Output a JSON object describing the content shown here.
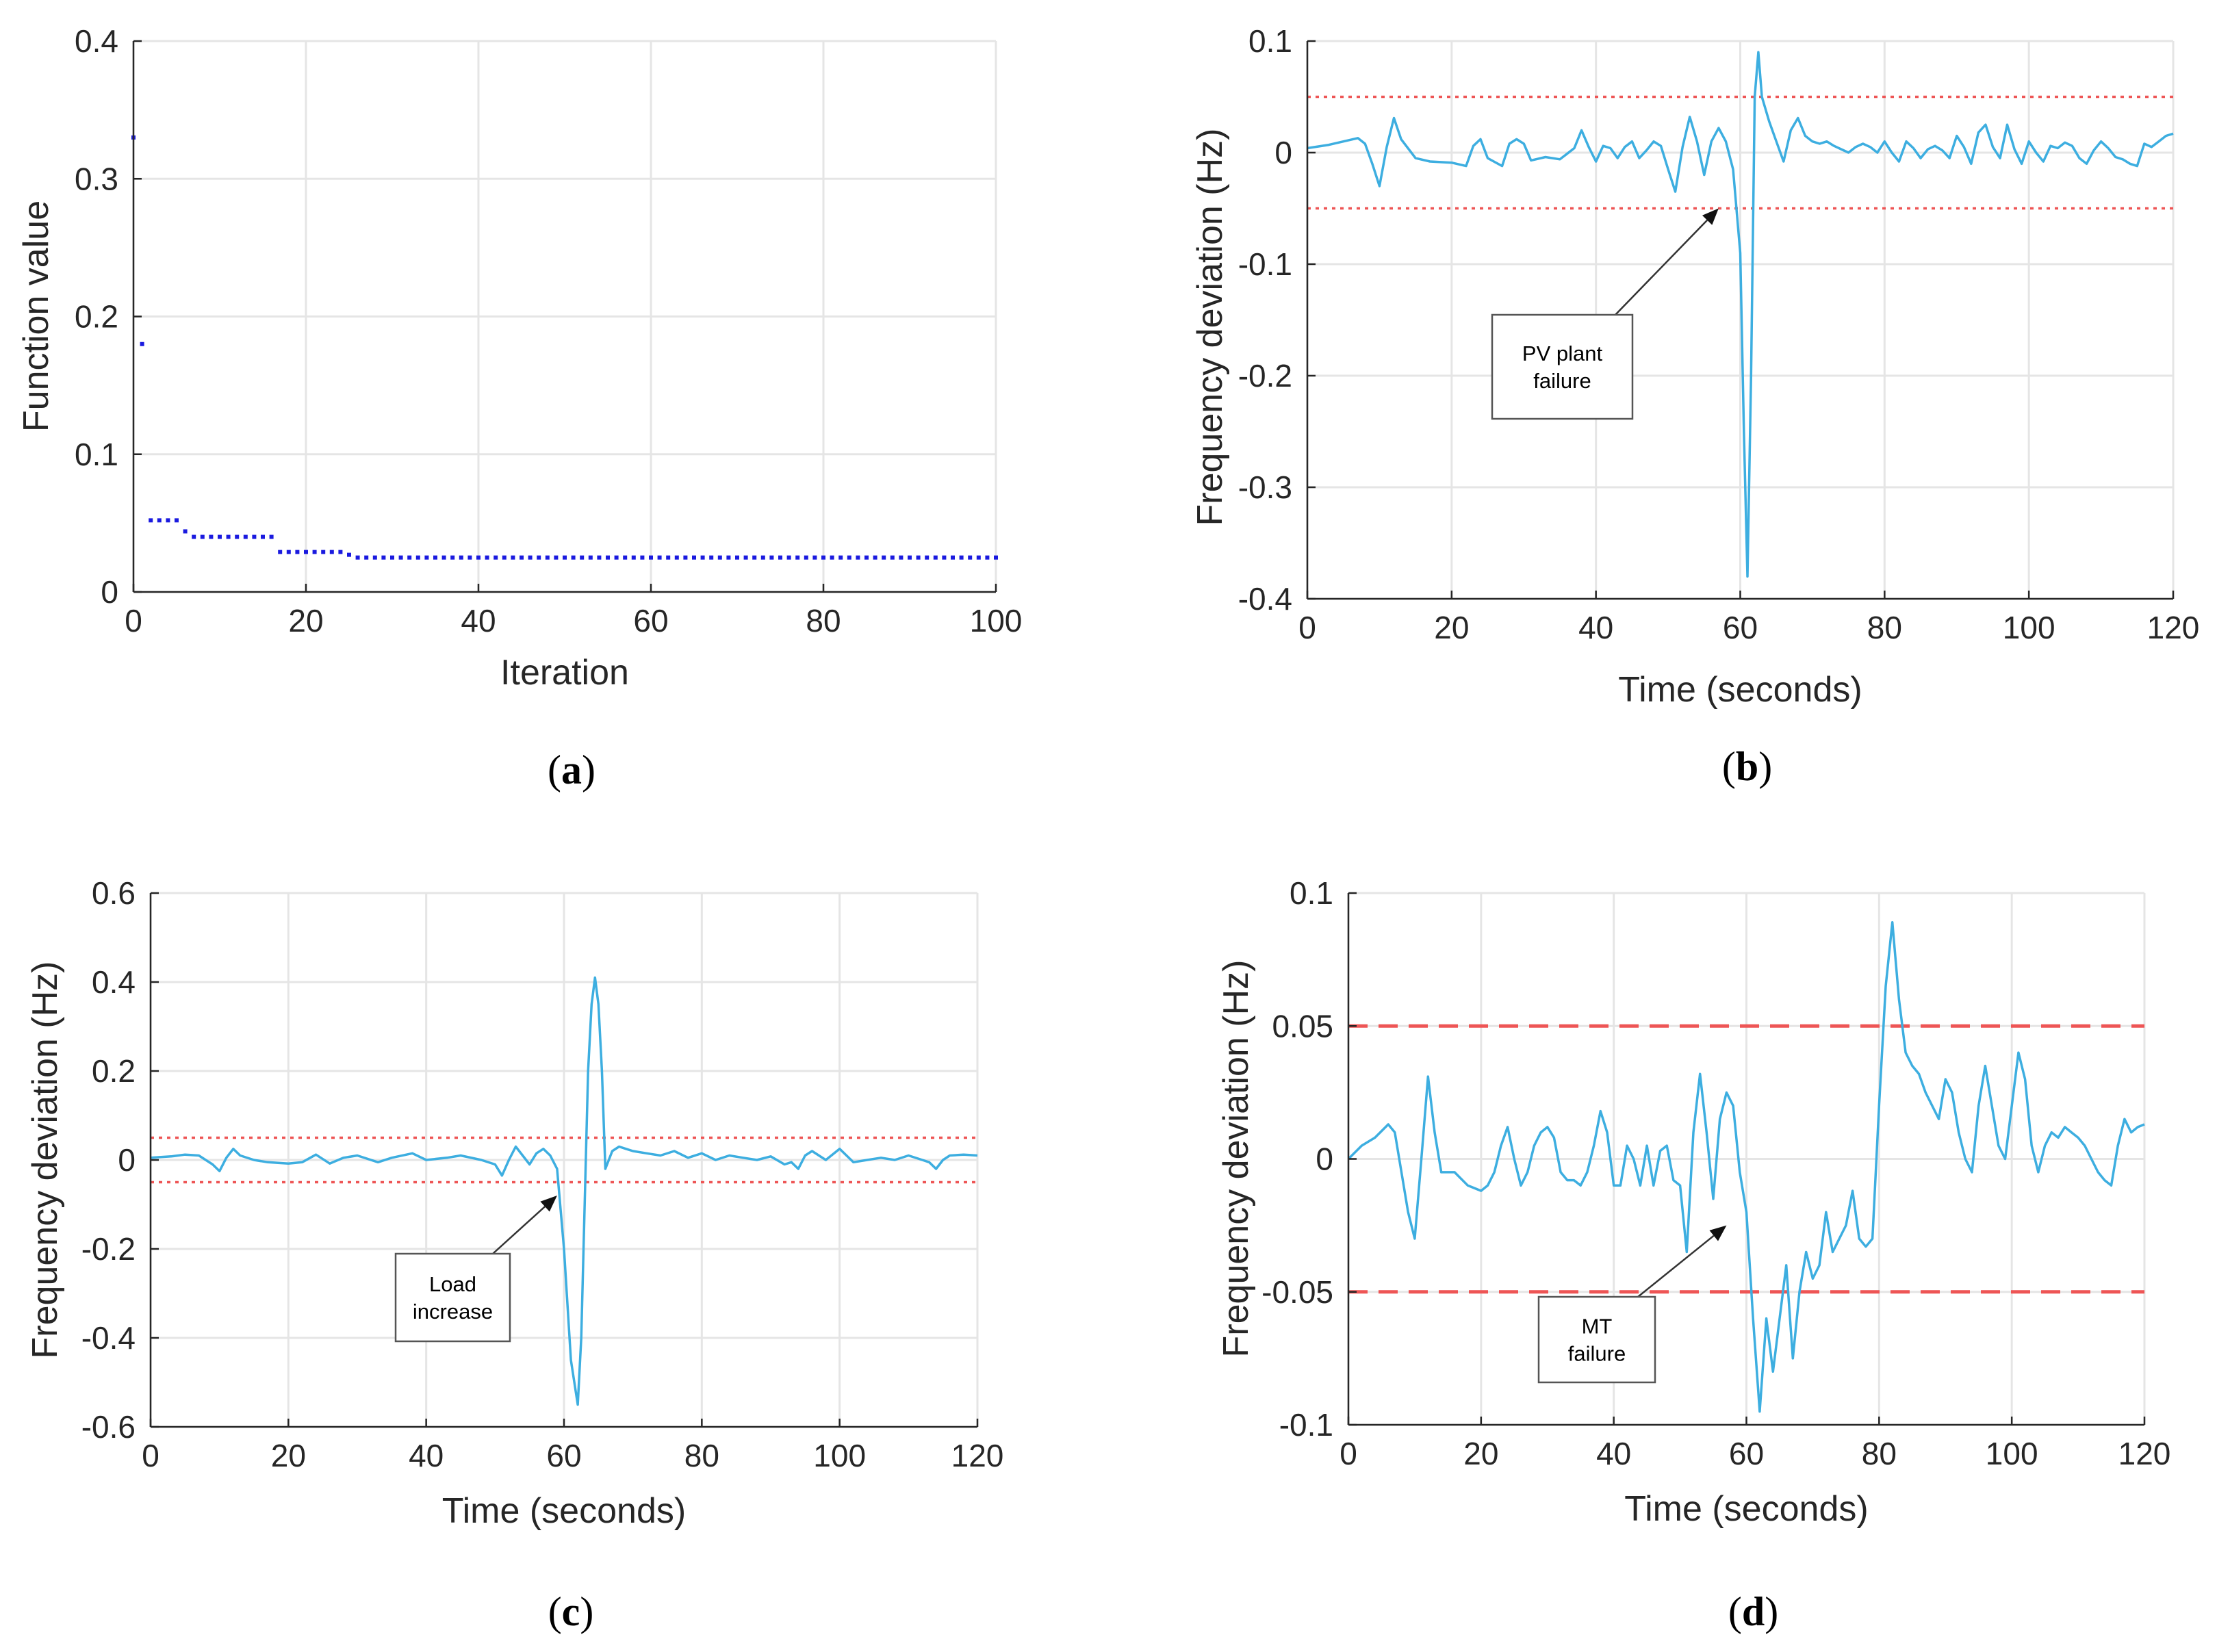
{
  "colors": {
    "line": "#3daee0",
    "scatter": "#1a1adf",
    "band": "#ee5555",
    "grid": "#e5e5e5",
    "axis": "#262626"
  },
  "chart_data": [
    {
      "id": "a",
      "type": "scatter",
      "caption": {
        "open": "(",
        "letter": "a",
        "close": ")"
      },
      "xlabel": "Iteration",
      "ylabel": "Function value",
      "xlim": [
        0,
        100
      ],
      "ylim": [
        0,
        0.4
      ],
      "xticks": [
        0,
        20,
        40,
        60,
        80,
        100
      ],
      "yticks": [
        0,
        0.1,
        0.2,
        0.3,
        0.4
      ],
      "xtick_labels": [
        "0",
        "20",
        "40",
        "60",
        "80",
        "100"
      ],
      "ytick_labels": [
        "0",
        "0.1",
        "0.2",
        "0.3",
        "0.4"
      ],
      "grid": true,
      "series": [
        {
          "name": "Function value",
          "steps": [
            {
              "from": 0,
              "to": 0,
              "value": 0.33
            },
            {
              "from": 1,
              "to": 1,
              "value": 0.18
            },
            {
              "from": 2,
              "to": 5,
              "value": 0.052
            },
            {
              "from": 6,
              "to": 6,
              "value": 0.044
            },
            {
              "from": 7,
              "to": 16,
              "value": 0.04
            },
            {
              "from": 17,
              "to": 24,
              "value": 0.029
            },
            {
              "from": 25,
              "to": 25,
              "value": 0.027
            },
            {
              "from": 26,
              "to": 100,
              "value": 0.025
            }
          ]
        }
      ]
    },
    {
      "id": "b",
      "type": "line",
      "caption": {
        "open": "(",
        "letter": "b",
        "close": ")"
      },
      "xlabel": "Time (seconds)",
      "ylabel": "Frequency deviation (Hz)",
      "xlim": [
        0,
        120
      ],
      "ylim": [
        -0.4,
        0.1
      ],
      "xticks": [
        0,
        20,
        40,
        60,
        80,
        100,
        120
      ],
      "yticks": [
        -0.4,
        -0.3,
        -0.2,
        -0.1,
        0,
        0.1
      ],
      "xtick_labels": [
        "0",
        "20",
        "40",
        "60",
        "80",
        "100",
        "120"
      ],
      "ytick_labels": [
        "-0.4",
        "-0.3",
        "-0.2",
        "-0.1",
        "0",
        "0.1"
      ],
      "grid": true,
      "limits": {
        "upper": 0.05,
        "lower": -0.05,
        "style": "dotted"
      },
      "series": [
        {
          "name": "Frequency deviation",
          "x": [
            0,
            3,
            5,
            7,
            8,
            9,
            10,
            11,
            12,
            13,
            15,
            17,
            20,
            22,
            23,
            24,
            25,
            27,
            28,
            29,
            30,
            31,
            33,
            35,
            37,
            38,
            39,
            40,
            41,
            42,
            43,
            44,
            45,
            46,
            47,
            48,
            49,
            50,
            51,
            52,
            53,
            54,
            55,
            56,
            57,
            58,
            59,
            60,
            60.5,
            61,
            61.5,
            62,
            62.5,
            63,
            64,
            65,
            66,
            67,
            68,
            69,
            70,
            71,
            72,
            73,
            74,
            75,
            76,
            77,
            78,
            79,
            80,
            81,
            82,
            83,
            84,
            85,
            86,
            87,
            88,
            89,
            90,
            91,
            92,
            93,
            94,
            95,
            96,
            97,
            98,
            99,
            100,
            101,
            102,
            103,
            104,
            105,
            106,
            107,
            108,
            109,
            110,
            111,
            112,
            113,
            114,
            115,
            116,
            117,
            118,
            119,
            120
          ],
          "y": [
            0.004,
            0.007,
            0.01,
            0.013,
            0.008,
            -0.01,
            -0.03,
            0.005,
            0.031,
            0.012,
            -0.005,
            -0.008,
            -0.009,
            -0.012,
            0.006,
            0.012,
            -0.005,
            -0.012,
            0.008,
            0.012,
            0.008,
            -0.007,
            -0.004,
            -0.006,
            0.004,
            0.02,
            0.005,
            -0.008,
            0.006,
            0.004,
            -0.005,
            0.005,
            0.01,
            -0.005,
            0.002,
            0.01,
            0.006,
            -0.015,
            -0.035,
            0.005,
            0.032,
            0.01,
            -0.02,
            0.01,
            0.022,
            0.01,
            -0.015,
            -0.09,
            -0.25,
            -0.38,
            -0.2,
            0.05,
            0.09,
            0.05,
            0.028,
            0.01,
            -0.008,
            0.02,
            0.031,
            0.015,
            0.01,
            0.008,
            0.01,
            0.006,
            0.003,
            0.0,
            0.005,
            0.008,
            0.005,
            0.0,
            0.01,
            0.0,
            -0.008,
            0.01,
            0.004,
            -0.005,
            0.003,
            0.006,
            0.002,
            -0.005,
            0.015,
            0.005,
            -0.01,
            0.018,
            0.025,
            0.005,
            -0.005,
            0.025,
            0.003,
            -0.01,
            0.01,
            0.0,
            -0.008,
            0.006,
            0.004,
            0.009,
            0.006,
            -0.005,
            -0.01,
            0.002,
            0.01,
            0.004,
            -0.004,
            -0.006,
            -0.01,
            -0.012,
            0.008,
            0.005,
            0.01,
            0.015,
            0.017
          ]
        }
      ],
      "annotation": {
        "lines": [
          "PV plant",
          "failure"
        ],
        "target": [
          57,
          -0.05
        ]
      }
    },
    {
      "id": "c",
      "type": "line",
      "caption": {
        "open": "(",
        "letter": "c",
        "close": ")"
      },
      "xlabel": "Time (seconds)",
      "ylabel": "Frequency deviation (Hz)",
      "xlim": [
        0,
        120
      ],
      "ylim": [
        -0.6,
        0.6
      ],
      "xticks": [
        0,
        20,
        40,
        60,
        80,
        100,
        120
      ],
      "yticks": [
        -0.6,
        -0.4,
        -0.2,
        0,
        0.2,
        0.4,
        0.6
      ],
      "xtick_labels": [
        "0",
        "20",
        "40",
        "60",
        "80",
        "100",
        "120"
      ],
      "ytick_labels": [
        "-0.6",
        "-0.4",
        "-0.2",
        "0",
        "0.2",
        "0.4",
        "0.6"
      ],
      "grid": true,
      "limits": {
        "upper": 0.05,
        "lower": -0.05,
        "style": "dotted"
      },
      "series": [
        {
          "name": "Frequency deviation",
          "x": [
            0,
            3,
            5,
            7,
            9,
            10,
            11,
            12,
            13,
            15,
            17,
            20,
            22,
            24,
            26,
            28,
            30,
            33,
            35,
            38,
            40,
            43,
            45,
            48,
            50,
            51,
            52,
            53,
            54,
            55,
            56,
            57,
            58,
            59,
            60,
            61,
            62,
            62.5,
            63,
            63.5,
            64,
            64.5,
            65,
            65.5,
            66,
            67,
            68,
            69,
            70,
            72,
            74,
            76,
            78,
            80,
            82,
            84,
            86,
            88,
            90,
            92,
            93,
            94,
            95,
            96,
            98,
            100,
            102,
            104,
            106,
            108,
            110,
            112,
            113,
            114,
            115,
            116,
            118,
            120
          ],
          "y": [
            0.005,
            0.008,
            0.012,
            0.01,
            -0.01,
            -0.025,
            0.005,
            0.025,
            0.01,
            0.0,
            -0.005,
            -0.008,
            -0.005,
            0.012,
            -0.008,
            0.005,
            0.01,
            -0.005,
            0.005,
            0.015,
            0.0,
            0.005,
            0.01,
            0.0,
            -0.01,
            -0.035,
            0.0,
            0.03,
            0.01,
            -0.01,
            0.015,
            0.025,
            0.01,
            -0.02,
            -0.2,
            -0.45,
            -0.55,
            -0.4,
            -0.1,
            0.2,
            0.35,
            0.41,
            0.35,
            0.2,
            -0.02,
            0.02,
            0.03,
            0.025,
            0.02,
            0.015,
            0.01,
            0.02,
            0.005,
            0.015,
            0.0,
            0.01,
            0.005,
            0.0,
            0.008,
            -0.01,
            -0.005,
            -0.02,
            0.01,
            0.02,
            0.0,
            0.025,
            -0.005,
            0.0,
            0.005,
            0.0,
            0.01,
            0.0,
            -0.005,
            -0.02,
            0.0,
            0.01,
            0.012,
            0.01
          ]
        }
      ],
      "annotation": {
        "lines": [
          "Load",
          "increase"
        ],
        "target": [
          59,
          -0.08
        ]
      }
    },
    {
      "id": "d",
      "type": "line",
      "caption": {
        "open": "(",
        "letter": "d",
        "close": ")"
      },
      "xlabel": "Time (seconds)",
      "ylabel": "Frequency deviation (Hz)",
      "xlim": [
        0,
        120
      ],
      "ylim": [
        -0.1,
        0.1
      ],
      "xticks": [
        0,
        20,
        40,
        60,
        80,
        100,
        120
      ],
      "yticks": [
        -0.1,
        -0.05,
        0,
        0.05,
        0.1
      ],
      "xtick_labels": [
        "0",
        "20",
        "40",
        "60",
        "80",
        "100",
        "120"
      ],
      "ytick_labels": [
        "-0.1",
        "-0.05",
        "0",
        "0.05",
        "0.1"
      ],
      "grid": true,
      "limits": {
        "upper": 0.05,
        "lower": -0.05,
        "style": "dashed"
      },
      "series": [
        {
          "name": "Frequency deviation",
          "x": [
            0,
            2,
            4,
            6,
            7,
            8,
            9,
            10,
            11,
            12,
            13,
            14,
            15,
            16,
            18,
            20,
            21,
            22,
            23,
            24,
            25,
            26,
            27,
            28,
            29,
            30,
            31,
            32,
            33,
            34,
            35,
            36,
            37,
            38,
            39,
            40,
            41,
            42,
            43,
            44,
            45,
            46,
            47,
            48,
            49,
            50,
            51,
            52,
            53,
            54,
            55,
            56,
            57,
            58,
            59,
            60,
            61,
            62,
            63,
            64,
            65,
            66,
            67,
            68,
            69,
            70,
            71,
            72,
            73,
            74,
            75,
            76,
            77,
            78,
            79,
            80,
            81,
            82,
            83,
            84,
            85,
            86,
            87,
            88,
            89,
            90,
            91,
            92,
            93,
            94,
            95,
            96,
            97,
            98,
            99,
            100,
            101,
            102,
            103,
            104,
            105,
            106,
            107,
            108,
            109,
            110,
            111,
            112,
            113,
            114,
            115,
            116,
            117,
            118,
            119,
            120
          ],
          "y": [
            0.0,
            0.005,
            0.008,
            0.013,
            0.01,
            -0.005,
            -0.02,
            -0.03,
            0.0,
            0.031,
            0.01,
            -0.005,
            -0.005,
            -0.005,
            -0.01,
            -0.012,
            -0.01,
            -0.005,
            0.005,
            0.012,
            0.0,
            -0.01,
            -0.005,
            0.005,
            0.01,
            0.012,
            0.008,
            -0.005,
            -0.008,
            -0.008,
            -0.01,
            -0.005,
            0.005,
            0.018,
            0.01,
            -0.01,
            -0.01,
            0.005,
            0.0,
            -0.01,
            0.005,
            -0.01,
            0.003,
            0.005,
            -0.008,
            -0.01,
            -0.035,
            0.01,
            0.032,
            0.01,
            -0.015,
            0.015,
            0.025,
            0.02,
            -0.005,
            -0.02,
            -0.06,
            -0.095,
            -0.06,
            -0.08,
            -0.06,
            -0.04,
            -0.075,
            -0.05,
            -0.035,
            -0.045,
            -0.04,
            -0.02,
            -0.035,
            -0.03,
            -0.025,
            -0.012,
            -0.03,
            -0.033,
            -0.03,
            0.02,
            0.065,
            0.089,
            0.06,
            0.04,
            0.035,
            0.032,
            0.025,
            0.02,
            0.015,
            0.03,
            0.025,
            0.01,
            0.0,
            -0.005,
            0.02,
            0.035,
            0.02,
            0.005,
            0.0,
            0.02,
            0.04,
            0.03,
            0.005,
            -0.005,
            0.005,
            0.01,
            0.008,
            0.012,
            0.01,
            0.008,
            0.005,
            0.0,
            -0.005,
            -0.008,
            -0.01,
            0.005,
            0.015,
            0.01,
            0.012,
            0.013
          ]
        }
      ],
      "annotation": {
        "lines": [
          "MT",
          "failure"
        ],
        "target": [
          57,
          -0.025
        ]
      }
    }
  ]
}
